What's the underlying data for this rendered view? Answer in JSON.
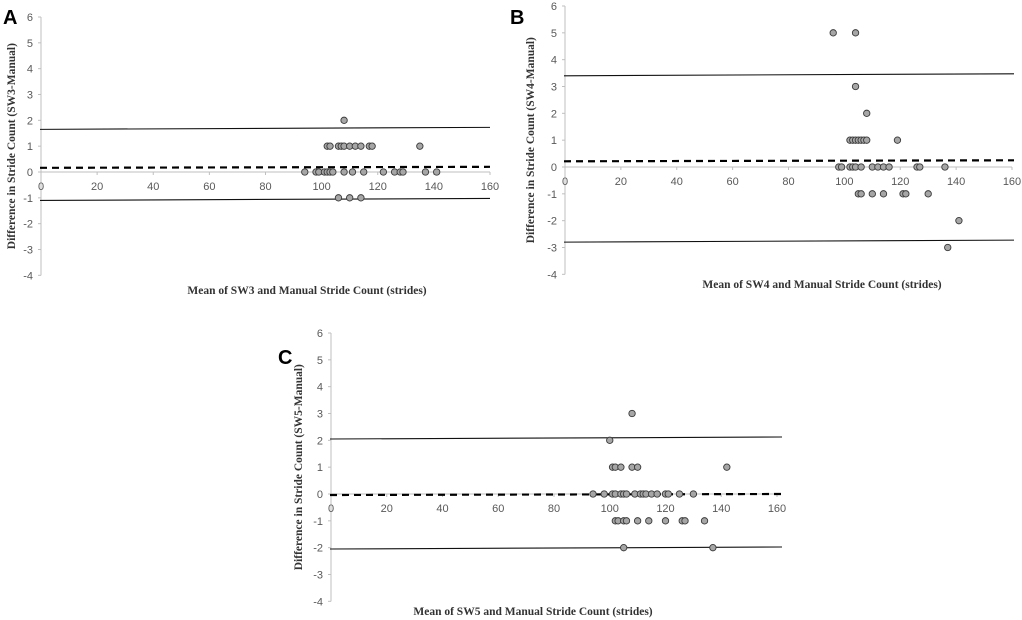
{
  "chart_data": [
    {
      "type": "scatter",
      "panel_label": "A",
      "xlabel": "Mean of SW3 and Manual Stride Count (strides)",
      "ylabel": "Difference in Stride Count (SW3-Manual)",
      "xlim": [
        0,
        160
      ],
      "ylim": [
        -4,
        6
      ],
      "xticks": [
        0,
        20,
        40,
        60,
        80,
        100,
        120,
        140,
        160
      ],
      "yticks": [
        -4,
        -3,
        -2,
        -1,
        0,
        1,
        2,
        3,
        4,
        5,
        6
      ],
      "bias": 0.2,
      "upper_loa": 1.65,
      "lower_loa": -1.1,
      "points": [
        [
          94,
          0
        ],
        [
          98,
          0
        ],
        [
          99,
          0
        ],
        [
          101,
          0
        ],
        [
          102,
          0
        ],
        [
          103,
          0
        ],
        [
          104,
          0
        ],
        [
          108,
          0
        ],
        [
          111,
          0
        ],
        [
          115,
          0
        ],
        [
          122,
          0
        ],
        [
          126,
          0
        ],
        [
          128,
          0
        ],
        [
          129,
          0
        ],
        [
          137,
          0
        ],
        [
          141,
          0
        ],
        [
          102,
          1
        ],
        [
          103,
          1
        ],
        [
          106,
          1
        ],
        [
          107,
          1
        ],
        [
          108,
          1
        ],
        [
          110,
          1
        ],
        [
          112,
          1
        ],
        [
          114,
          1
        ],
        [
          117,
          1
        ],
        [
          118,
          1
        ],
        [
          135,
          1
        ],
        [
          108,
          2
        ],
        [
          106,
          -1
        ],
        [
          110,
          -1
        ],
        [
          114,
          -1
        ]
      ]
    },
    {
      "type": "scatter",
      "panel_label": "B",
      "xlabel": "Mean of SW4 and Manual Stride Count (strides)",
      "ylabel": "Difference in Stride Count (SW4-Manual)",
      "xlim": [
        0,
        160
      ],
      "ylim": [
        -4,
        6
      ],
      "xticks": [
        0,
        20,
        40,
        60,
        80,
        100,
        120,
        140,
        160
      ],
      "yticks": [
        -4,
        -3,
        -2,
        -1,
        0,
        1,
        2,
        3,
        4,
        5,
        6
      ],
      "bias": 0.25,
      "upper_loa": 3.4,
      "lower_loa": -2.8,
      "points": [
        [
          96,
          5
        ],
        [
          104,
          5
        ],
        [
          104,
          3
        ],
        [
          108,
          2
        ],
        [
          102,
          1
        ],
        [
          103,
          1
        ],
        [
          104,
          1
        ],
        [
          105,
          1
        ],
        [
          106,
          1
        ],
        [
          107,
          1
        ],
        [
          108,
          1
        ],
        [
          119,
          1
        ],
        [
          98,
          0
        ],
        [
          99,
          0
        ],
        [
          102,
          0
        ],
        [
          103,
          0
        ],
        [
          104,
          0
        ],
        [
          106,
          0
        ],
        [
          110,
          0
        ],
        [
          112,
          0
        ],
        [
          114,
          0
        ],
        [
          116,
          0
        ],
        [
          126,
          0
        ],
        [
          127,
          0
        ],
        [
          136,
          0
        ],
        [
          105,
          -1
        ],
        [
          106,
          -1
        ],
        [
          110,
          -1
        ],
        [
          114,
          -1
        ],
        [
          121,
          -1
        ],
        [
          122,
          -1
        ],
        [
          130,
          -1
        ],
        [
          141,
          -2
        ],
        [
          137,
          -3
        ]
      ]
    },
    {
      "type": "scatter",
      "panel_label": "C",
      "xlabel": "Mean of SW5 and Manual Stride Count (strides)",
      "ylabel": "Difference in Stride Count (SW5-Manual)",
      "xlim": [
        0,
        160
      ],
      "ylim": [
        -4,
        6
      ],
      "xticks": [
        0,
        20,
        40,
        60,
        80,
        100,
        120,
        140,
        160
      ],
      "yticks": [
        -4,
        -3,
        -2,
        -1,
        0,
        1,
        2,
        3,
        4,
        5,
        6
      ],
      "bias": 0,
      "upper_loa": 2.05,
      "lower_loa": -2.05,
      "points": [
        [
          108,
          3
        ],
        [
          100,
          2
        ],
        [
          101,
          1
        ],
        [
          102,
          1
        ],
        [
          104,
          1
        ],
        [
          108,
          1
        ],
        [
          110,
          1
        ],
        [
          142,
          1
        ],
        [
          94,
          0
        ],
        [
          98,
          0
        ],
        [
          101,
          0
        ],
        [
          102,
          0
        ],
        [
          104,
          0
        ],
        [
          105,
          0
        ],
        [
          106,
          0
        ],
        [
          109,
          0
        ],
        [
          111,
          0
        ],
        [
          112,
          0
        ],
        [
          113,
          0
        ],
        [
          115,
          0
        ],
        [
          117,
          0
        ],
        [
          120,
          0
        ],
        [
          121,
          0
        ],
        [
          125,
          0
        ],
        [
          130,
          0
        ],
        [
          102,
          -1
        ],
        [
          103,
          -1
        ],
        [
          105,
          -1
        ],
        [
          106,
          -1
        ],
        [
          110,
          -1
        ],
        [
          114,
          -1
        ],
        [
          120,
          -1
        ],
        [
          126,
          -1
        ],
        [
          127,
          -1
        ],
        [
          134,
          -1
        ],
        [
          105,
          -2
        ],
        [
          137,
          -2
        ]
      ]
    }
  ]
}
